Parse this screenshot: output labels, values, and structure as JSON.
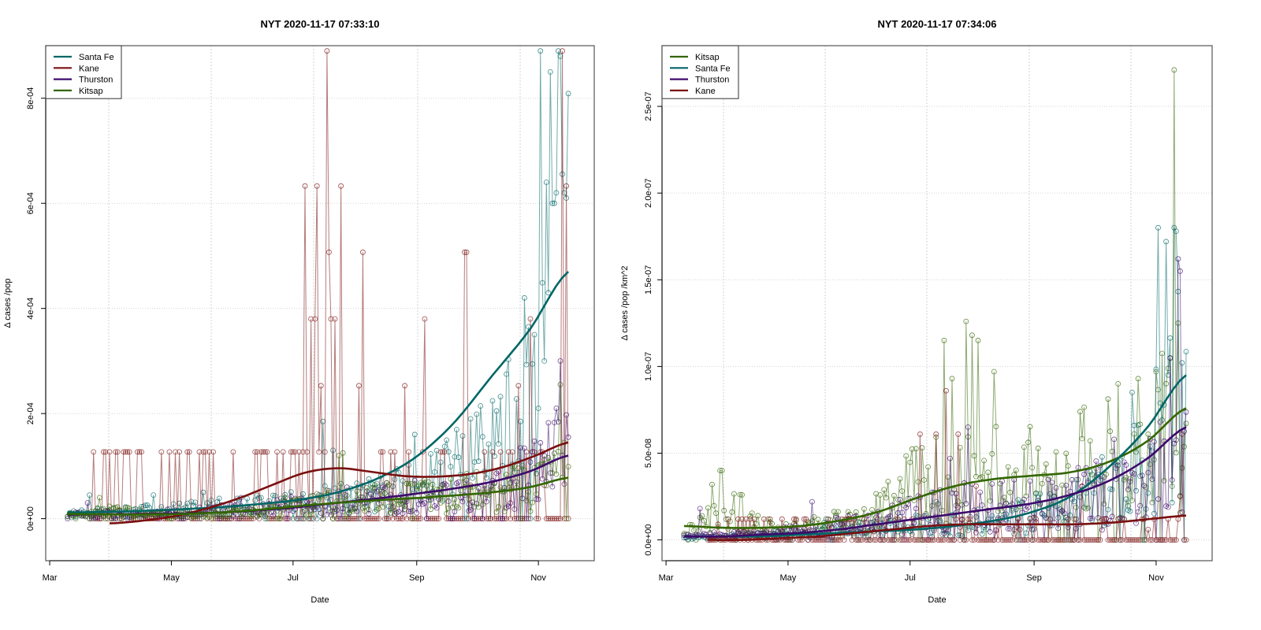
{
  "chart_data": [
    {
      "type": "line",
      "title": "NYT 2020-11-17 07:33:10",
      "xlabel": "Date",
      "ylabel": "Δ cases /pop",
      "x_ticks": [
        "Mar",
        "May",
        "Jul",
        "Sep",
        "Nov"
      ],
      "x_tick_dates": [
        "2020-03-01",
        "2020-05-01",
        "2020-07-01",
        "2020-09-01",
        "2020-11-01"
      ],
      "y_ticks": [
        "0e+00",
        "2e-04",
        "4e-04",
        "6e-04",
        "8e-04"
      ],
      "y_tick_values": [
        0,
        0.0002,
        0.0004,
        0.0006,
        0.0008
      ],
      "xlim": [
        "2020-02-28",
        "2020-11-29"
      ],
      "ylim": [
        -8e-05,
        0.0009
      ],
      "grid": true,
      "legend_position": "top-left",
      "legend": [
        "Santa Fe",
        "Kane",
        "Thurston",
        "Kitsap"
      ],
      "series": [
        {
          "name": "Santa Fe",
          "color": "#006666",
          "start": "2020-03-10",
          "end": "2020-11-16",
          "baseline": [
            8e-06,
            1.2e-05,
            1.5e-05,
            2e-05,
            2.5e-05,
            3e-05,
            3.8e-05,
            5e-05,
            7e-05,
            0.00012,
            0.00022,
            0.00045
          ],
          "spikes": [
            [
              "2020-03-21",
              4.5e-05
            ],
            [
              "2020-04-22",
              4.5e-05
            ],
            [
              "2020-05-17",
              5e-05
            ],
            [
              "2020-07-16",
              0.000185
            ],
            [
              "2020-07-21",
              0.00013
            ],
            [
              "2020-08-31",
              0.00016
            ],
            [
              "2020-10-11",
              0.000205
            ],
            [
              "2020-10-16",
              0.000275
            ],
            [
              "2020-10-23",
              0.000185
            ],
            [
              "2020-10-25",
              0.00042
            ],
            [
              "2020-10-27",
              0.000365
            ],
            [
              "2020-10-30",
              0.00035
            ],
            [
              "2020-11-01",
              0.00021
            ],
            [
              "2020-11-02",
              0.00089
            ],
            [
              "2020-11-04",
              0.0003
            ],
            [
              "2020-11-05",
              0.00064
            ],
            [
              "2020-11-06",
              0.00043
            ],
            [
              "2020-11-07",
              0.00085
            ],
            [
              "2020-11-08",
              0.0006
            ],
            [
              "2020-11-09",
              0.0006
            ],
            [
              "2020-11-10",
              0.00062
            ],
            [
              "2020-11-11",
              0.00089
            ],
            [
              "2020-11-12",
              0.00088
            ],
            [
              "2020-11-14",
              0.00062
            ],
            [
              "2020-11-15",
              0.00061
            ]
          ],
          "smooth_start": "2020-03-10",
          "smooth_end": "2020-11-16",
          "smooth": [
            1.2e-05,
            1.3e-05,
            1.5e-05,
            1.8e-05,
            2.2e-05,
            2.8e-05,
            3.6e-05,
            5e-05,
            7.5e-05,
            0.000115,
            0.00018,
            0.00027,
            0.00036,
            0.00047
          ]
        },
        {
          "name": "Kane",
          "color": "#7a1010",
          "start": "2020-03-22",
          "end": "2020-11-16",
          "baseline": [
            0,
            0,
            0,
            0,
            0,
            0,
            0,
            0,
            0,
            0,
            0,
            0
          ],
          "spikes": [
            [
              "2020-03-31",
              0.000127
            ],
            [
              "2020-04-04",
              0.000127
            ],
            [
              "2020-06-18",
              0.000127
            ],
            [
              "2020-06-30",
              0.000127
            ],
            [
              "2020-07-04",
              0.000127
            ],
            [
              "2020-07-07",
              0.000633
            ],
            [
              "2020-07-10",
              0.00038
            ],
            [
              "2020-07-12",
              0.00038
            ],
            [
              "2020-07-13",
              0.000633
            ],
            [
              "2020-07-15",
              0.000253
            ],
            [
              "2020-07-18",
              0.00089
            ],
            [
              "2020-07-19",
              0.000507
            ],
            [
              "2020-07-20",
              0.00038
            ],
            [
              "2020-07-22",
              0.00038
            ],
            [
              "2020-07-25",
              0.000633
            ],
            [
              "2020-08-03",
              0.000253
            ],
            [
              "2020-08-05",
              0.000507
            ],
            [
              "2020-08-26",
              0.000253
            ],
            [
              "2020-08-28",
              0.000127
            ],
            [
              "2020-09-05",
              0.00038
            ],
            [
              "2020-09-25",
              0.000507
            ],
            [
              "2020-09-26",
              0.000507
            ],
            [
              "2020-10-22",
              0.000253
            ],
            [
              "2020-10-28",
              0.00038
            ],
            [
              "2020-11-13",
              0.00089
            ],
            [
              "2020-11-15",
              0.000633
            ]
          ],
          "spike_level": 0.000127,
          "smooth_start": "2020-03-31",
          "smooth_end": "2020-11-16",
          "smooth": [
            -9e-06,
            -4e-06,
            5e-06,
            2e-05,
            4e-05,
            6.5e-05,
            8.8e-05,
            9.6e-05,
            8.9e-05,
            8.1e-05,
            8e-05,
            8.5e-05,
            9.8e-05,
            0.00012,
            0.000145
          ]
        },
        {
          "name": "Thurston",
          "color": "#3d0a6b",
          "start": "2020-03-10",
          "end": "2020-11-16",
          "baseline": [
            8e-06,
            8e-06,
            1e-05,
            1.3e-05,
            1.8e-05,
            2.5e-05,
            3.3e-05,
            3.8e-05,
            4.2e-05,
            5.5e-05,
            8e-05,
            0.00012
          ],
          "spikes": [
            [
              "2020-03-20",
              3e-05
            ],
            [
              "2020-06-05",
              4e-05
            ],
            [
              "2020-07-28",
              6e-05
            ],
            [
              "2020-10-21",
              7e-05
            ],
            [
              "2020-11-10",
              0.00021
            ],
            [
              "2020-11-12",
              0.0003
            ],
            [
              "2020-11-16",
              0.000155
            ]
          ],
          "smooth_start": "2020-03-10",
          "smooth_end": "2020-11-16",
          "smooth": [
            8e-06,
            8e-06,
            9e-06,
            1e-05,
            1.2e-05,
            1.6e-05,
            2.2e-05,
            3e-05,
            3.8e-05,
            4.7e-05,
            5.7e-05,
            7e-05,
            9e-05,
            0.00012
          ]
        },
        {
          "name": "Kitsap",
          "color": "#336600",
          "start": "2020-03-10",
          "end": "2020-11-16",
          "baseline": [
            5e-06,
            1.5e-05,
            8e-06,
            1e-05,
            1.5e-05,
            2.5e-05,
            3.2e-05,
            3.8e-05,
            4.2e-05,
            5e-05,
            6e-05,
            8e-05
          ],
          "spikes": [
            [
              "2020-03-26",
              4e-05
            ],
            [
              "2020-07-26",
              0.000125
            ],
            [
              "2020-07-24",
              0.00012
            ],
            [
              "2020-11-12",
              0.000255
            ],
            [
              "2020-11-14",
              0.000145
            ]
          ],
          "smooth_start": "2020-03-10",
          "smooth_end": "2020-11-16",
          "smooth": [
            9e-06,
            8e-06,
            8e-06,
            9e-06,
            1.2e-05,
            1.7e-05,
            2.4e-05,
            3e-05,
            3.5e-05,
            3.9e-05,
            4.4e-05,
            5e-05,
            6e-05,
            7.8e-05
          ]
        }
      ]
    },
    {
      "type": "line",
      "title": "NYT 2020-11-17 07:34:06",
      "xlabel": "Date",
      "ylabel": "Δ cases /pop /km^2",
      "x_ticks": [
        "Mar",
        "May",
        "Jul",
        "Sep",
        "Nov"
      ],
      "x_tick_dates": [
        "2020-03-01",
        "2020-05-01",
        "2020-07-01",
        "2020-09-01",
        "2020-11-01"
      ],
      "y_ticks": [
        "0.0e+00",
        "5.0e-08",
        "1.0e-07",
        "1.5e-07",
        "2.0e-07",
        "2.5e-07"
      ],
      "y_tick_values": [
        0,
        5e-08,
        1e-07,
        1.5e-07,
        2e-07,
        2.5e-07
      ],
      "xlim": [
        "2020-02-28",
        "2020-11-29"
      ],
      "ylim": [
        -1.2e-08,
        2.85e-07
      ],
      "grid": true,
      "legend_position": "top-left",
      "legend": [
        "Kitsap",
        "Santa Fe",
        "Thurston",
        "Kane"
      ],
      "series": [
        {
          "name": "Kitsap",
          "color": "#336600",
          "start": "2020-03-10",
          "end": "2020-11-16",
          "baseline": [
            3e-09,
            1.8e-08,
            5e-09,
            8e-09,
            1.2e-08,
            3e-08,
            4e-08,
            3.8e-08,
            3.6e-08,
            4.5e-08,
            5.5e-08,
            7e-08
          ],
          "spikes": [
            [
              "2020-03-24",
              3.2e-08
            ],
            [
              "2020-03-28",
              4e-08
            ],
            [
              "2020-03-29",
              4e-08
            ],
            [
              "2020-07-18",
              1.15e-07
            ],
            [
              "2020-07-22",
              9.3e-08
            ],
            [
              "2020-07-29",
              1.26e-07
            ],
            [
              "2020-08-01",
              1.18e-07
            ],
            [
              "2020-08-04",
              1.15e-07
            ],
            [
              "2020-08-12",
              9.7e-08
            ],
            [
              "2020-10-13",
              9e-08
            ],
            [
              "2020-11-10",
              2.71e-07
            ],
            [
              "2020-11-12",
              1.25e-07
            ]
          ],
          "smooth_start": "2020-03-10",
          "smooth_end": "2020-11-16",
          "smooth": [
            8e-09,
            7e-09,
            7e-09,
            8e-09,
            1.1e-08,
            1.6e-08,
            2.4e-08,
            3.1e-08,
            3.5e-08,
            3.7e-08,
            3.9e-08,
            4.5e-08,
            5.7e-08,
            7.6e-08
          ]
        },
        {
          "name": "Santa Fe",
          "color": "#006666",
          "start": "2020-03-10",
          "end": "2020-11-16",
          "baseline": [
            1e-09,
            2e-09,
            3e-09,
            4e-09,
            6e-09,
            8e-09,
            1e-08,
            1.2e-08,
            1.6e-08,
            2.5e-08,
            4.5e-08,
            9e-08
          ],
          "spikes": [
            [
              "2020-05-20",
              1.2e-08
            ],
            [
              "2020-07-14",
              2.2e-08
            ],
            [
              "2020-10-20",
              8.5e-08
            ],
            [
              "2020-11-02",
              1.8e-07
            ],
            [
              "2020-11-06",
              1.72e-07
            ],
            [
              "2020-11-10",
              1.8e-07
            ],
            [
              "2020-11-11",
              1.78e-07
            ]
          ],
          "smooth_start": "2020-03-10",
          "smooth_end": "2020-11-16",
          "smooth": [
            2e-09,
            2e-09,
            2e-09,
            3e-09,
            4e-09,
            5e-09,
            6e-09,
            8e-09,
            1.1e-08,
            1.6e-08,
            2.5e-08,
            4.2e-08,
            6.5e-08,
            9.5e-08
          ]
        },
        {
          "name": "Thurston",
          "color": "#3d0a6b",
          "start": "2020-03-10",
          "end": "2020-11-16",
          "baseline": [
            2e-09,
            3e-09,
            4e-09,
            6e-09,
            1e-08,
            1.4e-08,
            1.8e-08,
            2e-08,
            2.2e-08,
            2.6e-08,
            3.5e-08,
            5e-08
          ],
          "spikes": [
            [
              "2020-03-18",
              1.8e-08
            ],
            [
              "2020-05-13",
              2.2e-08
            ],
            [
              "2020-07-21",
              4.7e-08
            ],
            [
              "2020-07-30",
              6.5e-08
            ],
            [
              "2020-10-11",
              5.8e-08
            ],
            [
              "2020-11-08",
              1.05e-07
            ],
            [
              "2020-11-12",
              1.62e-07
            ],
            [
              "2020-11-13",
              1.55e-07
            ]
          ],
          "smooth_start": "2020-03-10",
          "smooth_end": "2020-11-16",
          "smooth": [
            2e-09,
            2e-09,
            3e-09,
            4e-09,
            6e-09,
            9e-09,
            1.2e-08,
            1.5e-08,
            1.8e-08,
            2.1e-08,
            2.6e-08,
            3.4e-08,
            4.7e-08,
            6.5e-08
          ]
        },
        {
          "name": "Kane",
          "color": "#7a1010",
          "start": "2020-03-22",
          "end": "2020-11-16",
          "baseline": [
            0,
            0,
            0,
            0,
            0,
            0,
            0,
            0,
            0,
            0,
            0,
            0
          ],
          "spikes": [
            [
              "2020-03-27",
              9e-09
            ],
            [
              "2020-07-06",
              6.1e-08
            ],
            [
              "2020-07-14",
              6.1e-08
            ],
            [
              "2020-07-19",
              8.6e-08
            ],
            [
              "2020-07-25",
              6.1e-08
            ],
            [
              "2020-08-03",
              3.1e-08
            ],
            [
              "2020-09-25",
              3.1e-08
            ],
            [
              "2020-11-14",
              6.1e-08
            ],
            [
              "2020-11-13",
              2.5e-08
            ]
          ],
          "spike_level": 1.2e-08,
          "smooth_start": "2020-03-22",
          "smooth_end": "2020-11-16",
          "smooth": [
            0.0,
            0.0,
            1e-09,
            2e-09,
            4e-09,
            6e-09,
            8e-09,
            9e-09,
            9e-09,
            9e-09,
            9e-09,
            1e-08,
            1.2e-08,
            1.4e-08
          ]
        }
      ]
    }
  ]
}
